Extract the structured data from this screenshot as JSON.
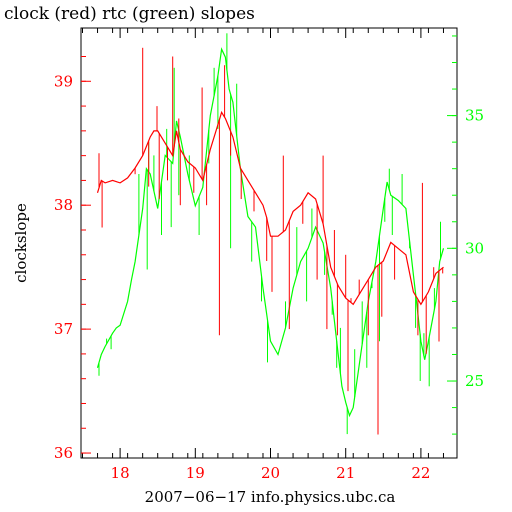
{
  "chart_data": {
    "type": "line",
    "title": "clock (red) rtc (green) slopes",
    "xlabel": "2007−06−17 info.physics.ubc.ca",
    "ylabel": "clockslope",
    "xlim": [
      17.48,
      22.48
    ],
    "ylim_left": [
      35.96,
      39.43
    ],
    "ylim_right": [
      22.1,
      38.3
    ],
    "x_ticks": [
      18,
      19,
      20,
      21,
      22
    ],
    "y_left_ticks": [
      36,
      37,
      38,
      39
    ],
    "y_right_ticks": [
      25,
      30,
      35
    ],
    "grid": false,
    "colors": {
      "clock": "#ff0000",
      "rtc": "#00ff00",
      "axes": "#000000"
    },
    "series": [
      {
        "name": "clock",
        "axis": "left",
        "color": "#ff0000",
        "x": [
          17.7,
          17.75,
          17.8,
          17.9,
          18.0,
          18.1,
          18.2,
          18.3,
          18.4,
          18.45,
          18.5,
          18.6,
          18.7,
          18.75,
          18.8,
          18.9,
          19.0,
          19.1,
          19.2,
          19.3,
          19.35,
          19.4,
          19.5,
          19.6,
          19.7,
          19.8,
          19.9,
          19.95,
          20.0,
          20.1,
          20.2,
          20.3,
          20.4,
          20.5,
          20.6,
          20.7,
          20.8,
          20.9,
          21.0,
          21.1,
          21.2,
          21.3,
          21.4,
          21.5,
          21.6,
          21.7,
          21.8,
          21.9,
          22.0,
          22.05,
          22.1,
          22.2,
          22.3
        ],
        "y": [
          38.1,
          38.2,
          38.18,
          38.2,
          38.18,
          38.22,
          38.3,
          38.4,
          38.55,
          38.6,
          38.6,
          38.5,
          38.4,
          38.6,
          38.45,
          38.35,
          38.3,
          38.2,
          38.45,
          38.65,
          38.75,
          38.7,
          38.55,
          38.3,
          38.2,
          38.1,
          38.0,
          37.9,
          37.75,
          37.75,
          37.8,
          37.95,
          38.0,
          38.1,
          38.05,
          37.85,
          37.5,
          37.35,
          37.25,
          37.2,
          37.3,
          37.4,
          37.5,
          37.55,
          37.7,
          37.65,
          37.6,
          37.3,
          37.2,
          37.25,
          37.3,
          37.45,
          37.5
        ],
        "spikes": [
          {
            "x": 17.72,
            "y": 38.42
          },
          {
            "x": 17.76,
            "y": 37.82
          },
          {
            "x": 18.2,
            "y": 38.25
          },
          {
            "x": 18.3,
            "y": 39.27
          },
          {
            "x": 18.38,
            "y": 38.15
          },
          {
            "x": 18.49,
            "y": 38.8
          },
          {
            "x": 18.52,
            "y": 38.05
          },
          {
            "x": 18.63,
            "y": 38.2
          },
          {
            "x": 18.7,
            "y": 39.2
          },
          {
            "x": 18.78,
            "y": 38.7
          },
          {
            "x": 18.8,
            "y": 38.0
          },
          {
            "x": 18.98,
            "y": 38.1
          },
          {
            "x": 19.09,
            "y": 38.95
          },
          {
            "x": 19.15,
            "y": 38.0
          },
          {
            "x": 19.32,
            "y": 36.95
          },
          {
            "x": 19.39,
            "y": 39.13
          },
          {
            "x": 19.47,
            "y": 38.4
          },
          {
            "x": 19.61,
            "y": 38.05
          },
          {
            "x": 19.78,
            "y": 37.95
          },
          {
            "x": 19.95,
            "y": 37.55
          },
          {
            "x": 20.02,
            "y": 37.3
          },
          {
            "x": 20.17,
            "y": 38.4
          },
          {
            "x": 20.25,
            "y": 37.0
          },
          {
            "x": 20.43,
            "y": 37.85
          },
          {
            "x": 20.62,
            "y": 37.4
          },
          {
            "x": 20.7,
            "y": 38.4
          },
          {
            "x": 20.75,
            "y": 37.0
          },
          {
            "x": 20.85,
            "y": 37.8
          },
          {
            "x": 20.89,
            "y": 36.95
          },
          {
            "x": 21.0,
            "y": 37.6
          },
          {
            "x": 21.03,
            "y": 36.5
          },
          {
            "x": 21.07,
            "y": 37.25
          },
          {
            "x": 21.18,
            "y": 37.4
          },
          {
            "x": 21.3,
            "y": 36.95
          },
          {
            "x": 21.43,
            "y": 36.15
          },
          {
            "x": 21.48,
            "y": 37.1
          },
          {
            "x": 21.65,
            "y": 37.4
          },
          {
            "x": 21.96,
            "y": 36.95
          },
          {
            "x": 22.02,
            "y": 38.18
          },
          {
            "x": 22.07,
            "y": 36.8
          },
          {
            "x": 22.17,
            "y": 37.5
          },
          {
            "x": 22.24,
            "y": 36.9
          },
          {
            "x": 22.29,
            "y": 37.45
          }
        ]
      },
      {
        "name": "rtc",
        "axis": "right",
        "color": "#00ff00",
        "x": [
          17.7,
          17.75,
          17.8,
          17.9,
          17.95,
          18.0,
          18.1,
          18.15,
          18.2,
          18.3,
          18.35,
          18.4,
          18.5,
          18.6,
          18.7,
          18.75,
          18.8,
          18.9,
          19.0,
          19.1,
          19.2,
          19.3,
          19.35,
          19.4,
          19.45,
          19.5,
          19.6,
          19.7,
          19.8,
          19.9,
          20.0,
          20.1,
          20.2,
          20.3,
          20.4,
          20.5,
          20.6,
          20.7,
          20.8,
          20.9,
          20.95,
          21.0,
          21.05,
          21.1,
          21.2,
          21.3,
          21.4,
          21.5,
          21.55,
          21.6,
          21.7,
          21.8,
          21.9,
          21.95,
          22.0,
          22.05,
          22.1,
          22.2,
          22.25,
          22.3
        ],
        "y": [
          25.5,
          26.0,
          26.3,
          26.8,
          27.0,
          27.1,
          28.0,
          28.8,
          29.5,
          31.5,
          33.0,
          32.8,
          31.5,
          33.5,
          33.2,
          34.8,
          34.2,
          32.8,
          31.6,
          32.3,
          35.0,
          36.5,
          37.5,
          37.2,
          36.0,
          35.5,
          33.0,
          31.2,
          30.8,
          28.5,
          26.5,
          26.0,
          27.0,
          28.5,
          29.5,
          30.0,
          30.8,
          30.2,
          28.5,
          26.0,
          24.8,
          24.2,
          23.7,
          24.0,
          26.0,
          28.0,
          29.5,
          31.5,
          32.5,
          32.0,
          31.8,
          31.5,
          29.0,
          27.8,
          26.5,
          25.8,
          26.5,
          28.0,
          29.5,
          30.0
        ],
        "spikes": [
          {
            "x": 17.72,
            "y": 25.2
          },
          {
            "x": 17.82,
            "y": 26.6
          },
          {
            "x": 17.88,
            "y": 26.2
          },
          {
            "x": 18.25,
            "y": 32.8
          },
          {
            "x": 18.36,
            "y": 29.2
          },
          {
            "x": 18.38,
            "y": 34.0
          },
          {
            "x": 18.45,
            "y": 33.5
          },
          {
            "x": 18.55,
            "y": 30.5
          },
          {
            "x": 18.62,
            "y": 34.5
          },
          {
            "x": 18.68,
            "y": 30.8
          },
          {
            "x": 18.72,
            "y": 36.8
          },
          {
            "x": 18.78,
            "y": 32.0
          },
          {
            "x": 18.92,
            "y": 33.5
          },
          {
            "x": 19.05,
            "y": 30.5
          },
          {
            "x": 19.18,
            "y": 33.2
          },
          {
            "x": 19.25,
            "y": 36.8
          },
          {
            "x": 19.3,
            "y": 34.5
          },
          {
            "x": 19.42,
            "y": 38.1
          },
          {
            "x": 19.47,
            "y": 30.0
          },
          {
            "x": 19.55,
            "y": 36.2
          },
          {
            "x": 19.75,
            "y": 29.5
          },
          {
            "x": 19.88,
            "y": 28.0
          },
          {
            "x": 19.96,
            "y": 25.7
          },
          {
            "x": 20.2,
            "y": 28.0
          },
          {
            "x": 20.35,
            "y": 30.8
          },
          {
            "x": 20.48,
            "y": 28.0
          },
          {
            "x": 20.55,
            "y": 31.5
          },
          {
            "x": 20.72,
            "y": 29.0
          },
          {
            "x": 20.82,
            "y": 27.5
          },
          {
            "x": 20.88,
            "y": 25.5
          },
          {
            "x": 20.93,
            "y": 27.0
          },
          {
            "x": 21.02,
            "y": 23.0
          },
          {
            "x": 21.12,
            "y": 26.2
          },
          {
            "x": 21.22,
            "y": 28.0
          },
          {
            "x": 21.28,
            "y": 25.5
          },
          {
            "x": 21.35,
            "y": 28.5
          },
          {
            "x": 21.45,
            "y": 26.5
          },
          {
            "x": 21.52,
            "y": 31.0
          },
          {
            "x": 21.58,
            "y": 33.0
          },
          {
            "x": 21.62,
            "y": 30.5
          },
          {
            "x": 21.75,
            "y": 32.8
          },
          {
            "x": 21.85,
            "y": 30.0
          },
          {
            "x": 21.93,
            "y": 27.0
          },
          {
            "x": 21.99,
            "y": 25.0
          },
          {
            "x": 22.04,
            "y": 26.8
          },
          {
            "x": 22.11,
            "y": 24.8
          },
          {
            "x": 22.18,
            "y": 28.5
          },
          {
            "x": 22.26,
            "y": 31.0
          }
        ]
      }
    ]
  }
}
